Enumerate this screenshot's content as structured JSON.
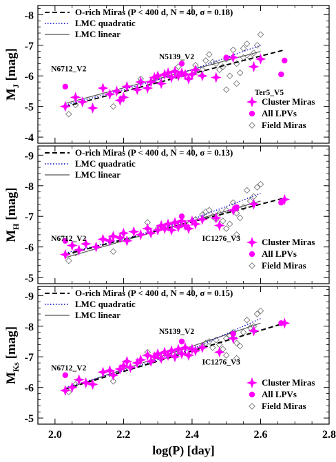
{
  "colors": {
    "magenta": "#ff00ff",
    "quadratic": "#0000cc",
    "linear": "#555555",
    "orich": "#000000",
    "field": "#777777"
  },
  "chart_data": [
    {
      "type": "scatter",
      "ylabel": "M",
      "ylabel_sub": "J",
      "ylabel_unit": "[mag]",
      "ylim": [
        -3.8,
        -8.3
      ],
      "yticks": [
        -4,
        -5,
        -6,
        -7,
        -8
      ],
      "xlim": [
        1.95,
        2.8
      ],
      "xticks": [
        2.0,
        2.2,
        2.4,
        2.6,
        2.8
      ],
      "legend_top": {
        "orich": "O-rich Miras (P < 400 d,  N = 40,  σ = 0.18)",
        "quadratic": "LMC quadratic",
        "linear": "LMC linear"
      },
      "legend_bottom": {
        "cluster": "Cluster Miras",
        "all": "All LPVs",
        "field": "Field Miras"
      },
      "lines": {
        "orich": [
          [
            2.03,
            -5.0
          ],
          [
            2.67,
            -6.85
          ]
        ],
        "linear": [
          [
            2.03,
            -5.1
          ],
          [
            2.6,
            -6.8
          ]
        ],
        "quadratic": [
          [
            2.03,
            -5.05
          ],
          [
            2.2,
            -5.55
          ],
          [
            2.4,
            -6.2
          ],
          [
            2.6,
            -7.0
          ]
        ]
      },
      "annotations": [
        {
          "text": "N6712_V2",
          "x": 2.04,
          "y": -6.15
        },
        {
          "text": "N5139_V2",
          "x": 2.355,
          "y": -6.55
        },
        {
          "text": "Ter5_V5",
          "x": 2.625,
          "y": -5.38
        }
      ],
      "cluster": [
        [
          2.03,
          -5.0
        ],
        [
          2.06,
          -5.3
        ],
        [
          2.08,
          -5.15
        ],
        [
          2.11,
          -4.95
        ],
        [
          2.14,
          -5.6
        ],
        [
          2.16,
          -5.4
        ],
        [
          2.18,
          -5.5
        ],
        [
          2.19,
          -5.2
        ],
        [
          2.2,
          -5.3
        ],
        [
          2.21,
          -5.65
        ],
        [
          2.24,
          -5.55
        ],
        [
          2.25,
          -5.8
        ],
        [
          2.27,
          -5.6
        ],
        [
          2.28,
          -5.8
        ],
        [
          2.29,
          -5.95
        ],
        [
          2.3,
          -6.0
        ],
        [
          2.31,
          -5.75
        ],
        [
          2.32,
          -6.05
        ],
        [
          2.33,
          -6.1
        ],
        [
          2.34,
          -5.95
        ],
        [
          2.35,
          -6.15
        ],
        [
          2.36,
          -6.0
        ],
        [
          2.37,
          -6.1
        ],
        [
          2.38,
          -6.05
        ],
        [
          2.39,
          -5.9
        ],
        [
          2.4,
          -6.05
        ],
        [
          2.41,
          -6.2
        ],
        [
          2.43,
          -6.0
        ],
        [
          2.47,
          -5.95
        ],
        [
          2.52,
          -6.6
        ],
        [
          2.58,
          -6.3
        ],
        [
          2.6,
          -6.55
        ]
      ],
      "all": [
        [
          2.03,
          -5.65
        ],
        [
          2.37,
          -6.4
        ],
        [
          2.5,
          -6.6
        ],
        [
          2.66,
          -6.05
        ],
        [
          2.67,
          -6.5
        ]
      ],
      "field": [
        [
          2.04,
          -4.75
        ],
        [
          2.06,
          -5.05
        ],
        [
          2.17,
          -5.0
        ],
        [
          2.25,
          -5.9
        ],
        [
          2.3,
          -5.85
        ],
        [
          2.36,
          -6.3
        ],
        [
          2.41,
          -6.35
        ],
        [
          2.42,
          -6.1
        ],
        [
          2.43,
          -6.2
        ],
        [
          2.44,
          -6.5
        ],
        [
          2.45,
          -6.7
        ],
        [
          2.46,
          -6.45
        ],
        [
          2.47,
          -6.4
        ],
        [
          2.48,
          -6.2
        ],
        [
          2.49,
          -6.3
        ],
        [
          2.5,
          -6.55
        ],
        [
          2.51,
          -6.0
        ],
        [
          2.52,
          -6.85
        ],
        [
          2.53,
          -6.4
        ],
        [
          2.54,
          -6.1
        ],
        [
          2.55,
          -6.6
        ],
        [
          2.56,
          -7.05
        ],
        [
          2.57,
          -6.6
        ],
        [
          2.58,
          -6.75
        ],
        [
          2.59,
          -7.0
        ],
        [
          2.6,
          -7.35
        ],
        [
          2.53,
          -5.75
        ],
        [
          2.5,
          -5.55
        ],
        [
          2.55,
          -6.9
        ]
      ]
    },
    {
      "type": "scatter",
      "ylabel": "M",
      "ylabel_sub": "H",
      "ylabel_unit": "[mag]",
      "ylim": [
        -4.8,
        -9.3
      ],
      "yticks": [
        -5,
        -6,
        -7,
        -8,
        -9
      ],
      "xlim": [
        1.95,
        2.8
      ],
      "xticks": [
        2.0,
        2.2,
        2.4,
        2.6,
        2.8
      ],
      "legend_top": {
        "orich": "O-rich Miras (P < 400 d,  N = 40,  σ = 0.13)",
        "quadratic": "LMC quadratic",
        "linear": "LMC linear"
      },
      "legend_bottom": {
        "cluster": "Cluster Miras",
        "all": "All LPVs",
        "field": "Field Miras"
      },
      "lines": {
        "orich": [
          [
            2.03,
            -5.75
          ],
          [
            2.67,
            -7.6
          ]
        ],
        "linear": [
          [
            2.03,
            -5.65
          ],
          [
            2.6,
            -7.5
          ]
        ],
        "quadratic": [
          [
            2.03,
            -5.8
          ],
          [
            2.2,
            -6.25
          ],
          [
            2.4,
            -6.9
          ],
          [
            2.6,
            -7.75
          ]
        ]
      },
      "annotations": [
        {
          "text": "N6712_V2",
          "x": 2.04,
          "y": -6.2
        },
        {
          "text": "IC1276_V3",
          "x": 2.485,
          "y": -6.2
        }
      ],
      "cluster": [
        [
          2.03,
          -5.75
        ],
        [
          2.05,
          -6.05
        ],
        [
          2.07,
          -5.9
        ],
        [
          2.09,
          -6.1
        ],
        [
          2.12,
          -6.0
        ],
        [
          2.14,
          -6.25
        ],
        [
          2.16,
          -6.2
        ],
        [
          2.17,
          -6.35
        ],
        [
          2.19,
          -6.3
        ],
        [
          2.2,
          -6.45
        ],
        [
          2.21,
          -6.2
        ],
        [
          2.23,
          -6.5
        ],
        [
          2.25,
          -6.4
        ],
        [
          2.27,
          -6.6
        ],
        [
          2.28,
          -6.45
        ],
        [
          2.3,
          -6.55
        ],
        [
          2.31,
          -6.7
        ],
        [
          2.32,
          -6.6
        ],
        [
          2.33,
          -6.75
        ],
        [
          2.34,
          -6.55
        ],
        [
          2.35,
          -6.8
        ],
        [
          2.36,
          -6.65
        ],
        [
          2.37,
          -6.85
        ],
        [
          2.38,
          -6.7
        ],
        [
          2.39,
          -6.6
        ],
        [
          2.4,
          -6.85
        ],
        [
          2.41,
          -6.75
        ],
        [
          2.43,
          -6.9
        ],
        [
          2.47,
          -6.95
        ],
        [
          2.48,
          -6.7
        ],
        [
          2.52,
          -7.2
        ],
        [
          2.58,
          -7.4
        ],
        [
          2.67,
          -7.55
        ]
      ],
      "all": [
        [
          2.03,
          -6.2
        ],
        [
          2.37,
          -7.0
        ],
        [
          2.53,
          -7.3
        ],
        [
          2.66,
          -7.45
        ]
      ],
      "field": [
        [
          2.04,
          -5.55
        ],
        [
          2.06,
          -5.8
        ],
        [
          2.17,
          -5.85
        ],
        [
          2.27,
          -6.8
        ],
        [
          2.3,
          -6.6
        ],
        [
          2.36,
          -6.75
        ],
        [
          2.41,
          -6.9
        ],
        [
          2.43,
          -7.05
        ],
        [
          2.44,
          -7.15
        ],
        [
          2.45,
          -7.2
        ],
        [
          2.46,
          -7.0
        ],
        [
          2.47,
          -6.9
        ],
        [
          2.48,
          -7.1
        ],
        [
          2.49,
          -6.85
        ],
        [
          2.5,
          -7.2
        ],
        [
          2.51,
          -6.75
        ],
        [
          2.52,
          -7.45
        ],
        [
          2.53,
          -7.1
        ],
        [
          2.54,
          -6.95
        ],
        [
          2.55,
          -7.3
        ],
        [
          2.56,
          -7.85
        ],
        [
          2.57,
          -7.5
        ],
        [
          2.58,
          -7.65
        ],
        [
          2.59,
          -7.95
        ],
        [
          2.6,
          -8.05
        ],
        [
          2.5,
          -6.6
        ],
        [
          2.53,
          -6.4
        ]
      ]
    },
    {
      "type": "scatter",
      "ylabel": "M",
      "ylabel_sub": "Ks",
      "ylabel_unit": "[mag]",
      "ylim": [
        -4.8,
        -9.3
      ],
      "yticks": [
        -5,
        -6,
        -7,
        -8,
        -9
      ],
      "xlim": [
        1.95,
        2.8
      ],
      "xticks": [
        2.0,
        2.2,
        2.4,
        2.6,
        2.8
      ],
      "xtick_labels": [
        "2.0",
        "2.2",
        "2.4",
        "2.6",
        "2.8"
      ],
      "xlabel": "log(P) [day]",
      "legend_top": {
        "orich": "O-rich Miras (P < 400 d,  N = 40,  σ = 0.15)",
        "quadratic": "LMC quadratic",
        "linear": "LMC linear"
      },
      "legend_bottom": {
        "cluster": "Cluster Miras",
        "all": "All LPVs",
        "field": "Field Miras"
      },
      "lines": {
        "orich": [
          [
            2.03,
            -5.95
          ],
          [
            2.67,
            -8.1
          ]
        ],
        "linear": [
          [
            2.03,
            -5.95
          ],
          [
            2.6,
            -8.1
          ]
        ],
        "quadratic": [
          [
            2.03,
            -6.0
          ],
          [
            2.2,
            -6.55
          ],
          [
            2.4,
            -7.25
          ],
          [
            2.6,
            -8.25
          ]
        ]
      },
      "annotations": [
        {
          "text": "N6712_V2",
          "x": 2.04,
          "y": -6.55
        },
        {
          "text": "N5139_V2",
          "x": 2.355,
          "y": -7.75
        },
        {
          "text": "IC1276_V3",
          "x": 2.485,
          "y": -6.75
        }
      ],
      "cluster": [
        [
          2.03,
          -5.9
        ],
        [
          2.05,
          -6.0
        ],
        [
          2.07,
          -6.25
        ],
        [
          2.09,
          -6.15
        ],
        [
          2.11,
          -6.1
        ],
        [
          2.14,
          -6.5
        ],
        [
          2.16,
          -6.55
        ],
        [
          2.17,
          -6.4
        ],
        [
          2.19,
          -6.6
        ],
        [
          2.2,
          -6.7
        ],
        [
          2.21,
          -6.85
        ],
        [
          2.22,
          -6.65
        ],
        [
          2.24,
          -6.8
        ],
        [
          2.25,
          -6.9
        ],
        [
          2.27,
          -7.05
        ],
        [
          2.28,
          -6.85
        ],
        [
          2.29,
          -7.0
        ],
        [
          2.3,
          -7.1
        ],
        [
          2.31,
          -6.95
        ],
        [
          2.32,
          -7.15
        ],
        [
          2.33,
          -7.05
        ],
        [
          2.34,
          -7.2
        ],
        [
          2.35,
          -7.0
        ],
        [
          2.36,
          -7.25
        ],
        [
          2.37,
          -7.1
        ],
        [
          2.38,
          -7.3
        ],
        [
          2.39,
          -7.05
        ],
        [
          2.4,
          -7.25
        ],
        [
          2.41,
          -7.2
        ],
        [
          2.43,
          -7.3
        ],
        [
          2.48,
          -7.15
        ],
        [
          2.52,
          -7.6
        ],
        [
          2.58,
          -7.85
        ],
        [
          2.67,
          -8.1
        ]
      ],
      "all": [
        [
          2.03,
          -6.4
        ],
        [
          2.37,
          -7.5
        ],
        [
          2.52,
          -7.75
        ],
        [
          2.66,
          -8.1
        ]
      ],
      "field": [
        [
          2.04,
          -5.85
        ],
        [
          2.06,
          -6.1
        ],
        [
          2.17,
          -6.2
        ],
        [
          2.27,
          -7.15
        ],
        [
          2.3,
          -7.0
        ],
        [
          2.36,
          -7.2
        ],
        [
          2.41,
          -7.2
        ],
        [
          2.43,
          -7.35
        ],
        [
          2.44,
          -7.45
        ],
        [
          2.45,
          -7.5
        ],
        [
          2.46,
          -7.3
        ],
        [
          2.47,
          -7.55
        ],
        [
          2.48,
          -7.4
        ],
        [
          2.49,
          -7.25
        ],
        [
          2.5,
          -7.6
        ],
        [
          2.51,
          -7.7
        ],
        [
          2.52,
          -7.8
        ],
        [
          2.53,
          -7.45
        ],
        [
          2.54,
          -7.35
        ],
        [
          2.55,
          -7.8
        ],
        [
          2.56,
          -8.2
        ],
        [
          2.57,
          -7.95
        ],
        [
          2.58,
          -8.0
        ],
        [
          2.59,
          -8.4
        ],
        [
          2.6,
          -8.5
        ],
        [
          2.5,
          -7.05
        ],
        [
          2.53,
          -6.95
        ]
      ]
    }
  ]
}
